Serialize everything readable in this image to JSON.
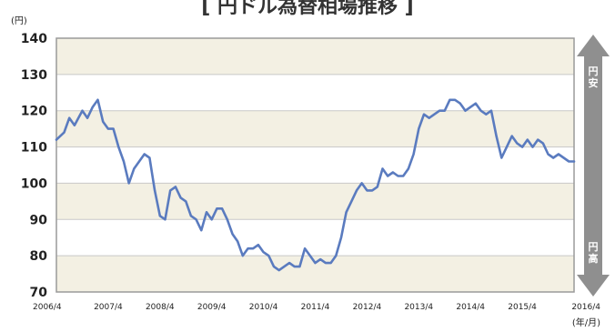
{
  "chart_data": {
    "type": "line",
    "title": "[ 円ドル為替相場推移 ]",
    "y_unit_label": "(円)",
    "x_unit_label": "(年/月)",
    "ylim": [
      70,
      140
    ],
    "y_ticks": [
      70,
      80,
      90,
      100,
      110,
      120,
      130,
      140
    ],
    "x_ticks": [
      "2006/4",
      "2007/4",
      "2008/4",
      "2009/4",
      "2010/4",
      "2011/4",
      "2012/4",
      "2013/4",
      "2014/4",
      "2015/4",
      "2016/4"
    ],
    "x_range": [
      2006.25,
      2016.25
    ],
    "grid": true,
    "band_colors": [
      "#f3f0e3",
      "#ffffff"
    ],
    "line_color": "#5a7bbf",
    "arrow": {
      "top_label": "円安",
      "bottom_label": "円高",
      "color": "#8f8f8f"
    },
    "series": [
      {
        "x": [
          2006.25,
          2006.4,
          2006.5,
          2006.6,
          2006.75,
          2006.85,
          2006.95,
          2007.05,
          2007.15,
          2007.25,
          2007.35,
          2007.45,
          2007.55,
          2007.65,
          2007.75,
          2007.85,
          2007.95,
          2008.05,
          2008.15,
          2008.25,
          2008.35,
          2008.45,
          2008.55,
          2008.65,
          2008.75,
          2008.85,
          2008.95,
          2009.05,
          2009.15,
          2009.25,
          2009.35,
          2009.45,
          2009.55,
          2009.65,
          2009.75,
          2009.85,
          2009.95,
          2010.05,
          2010.15,
          2010.25,
          2010.35,
          2010.45,
          2010.55,
          2010.65,
          2010.75,
          2010.85,
          2010.95,
          2011.05,
          2011.15,
          2011.25,
          2011.35,
          2011.45,
          2011.55,
          2011.65,
          2011.75,
          2011.85,
          2011.95,
          2012.05,
          2012.15,
          2012.25,
          2012.35,
          2012.45,
          2012.55,
          2012.65,
          2012.75,
          2012.85,
          2012.95,
          2013.05,
          2013.15,
          2013.25,
          2013.35,
          2013.45,
          2013.55,
          2013.65,
          2013.75,
          2013.85,
          2013.95,
          2014.05,
          2014.15,
          2014.25,
          2014.35,
          2014.45,
          2014.55,
          2014.65,
          2014.75,
          2014.85,
          2014.95,
          2015.05,
          2015.15,
          2015.25,
          2015.35,
          2015.45,
          2015.55,
          2015.65,
          2015.75,
          2015.85,
          2015.95,
          2016.05,
          2016.15,
          2016.25
        ],
        "y": [
          112,
          114,
          118,
          116,
          120,
          118,
          121,
          123,
          117,
          115,
          115,
          110,
          106,
          100,
          104,
          106,
          108,
          107,
          98,
          91,
          90,
          98,
          99,
          96,
          95,
          91,
          90,
          87,
          92,
          90,
          93,
          93,
          90,
          86,
          84,
          80,
          82,
          82,
          83,
          81,
          80,
          77,
          76,
          77,
          78,
          77,
          77,
          82,
          80,
          78,
          79,
          78,
          78,
          80,
          85,
          92,
          95,
          98,
          100,
          98,
          98,
          99,
          104,
          102,
          103,
          102,
          102,
          104,
          108,
          115,
          119,
          118,
          119,
          120,
          120,
          123,
          123,
          122,
          120,
          121,
          122,
          120,
          119,
          120,
          113,
          107,
          110,
          113,
          111,
          110,
          112,
          110,
          112,
          111,
          108,
          107,
          108,
          107,
          106,
          106
        ]
      }
    ]
  }
}
